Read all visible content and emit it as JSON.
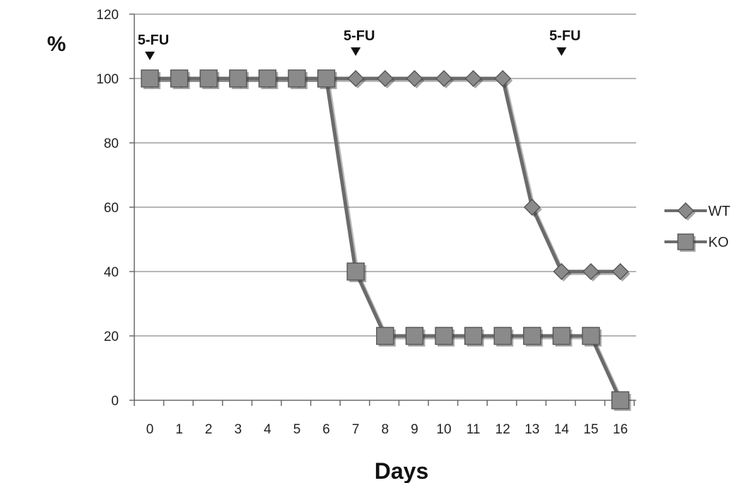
{
  "chart_data": {
    "type": "line",
    "x": [
      0,
      1,
      2,
      3,
      4,
      5,
      6,
      7,
      8,
      9,
      10,
      11,
      12,
      13,
      14,
      15,
      16
    ],
    "xlabel": "Days",
    "ylabel": "%",
    "xlim": [
      0,
      16
    ],
    "ylim": [
      0,
      120
    ],
    "yticks": [
      0,
      20,
      40,
      60,
      80,
      100,
      120
    ],
    "grid": true,
    "legend_position": "right",
    "series": [
      {
        "name": "WT",
        "marker": "diamond",
        "color": "#6b6b6b",
        "values": [
          100,
          100,
          100,
          100,
          100,
          100,
          100,
          100,
          100,
          100,
          100,
          100,
          100,
          60,
          40,
          40,
          40
        ]
      },
      {
        "name": "KO",
        "marker": "square",
        "color": "#6b6b6b",
        "values": [
          100,
          100,
          100,
          100,
          100,
          100,
          100,
          40,
          20,
          20,
          20,
          20,
          20,
          20,
          20,
          20,
          0
        ]
      }
    ],
    "annotations": [
      {
        "text": "5-FU",
        "x": 0
      },
      {
        "text": "5-FU",
        "x": 7
      },
      {
        "text": "5-FU",
        "x": 14
      }
    ]
  }
}
